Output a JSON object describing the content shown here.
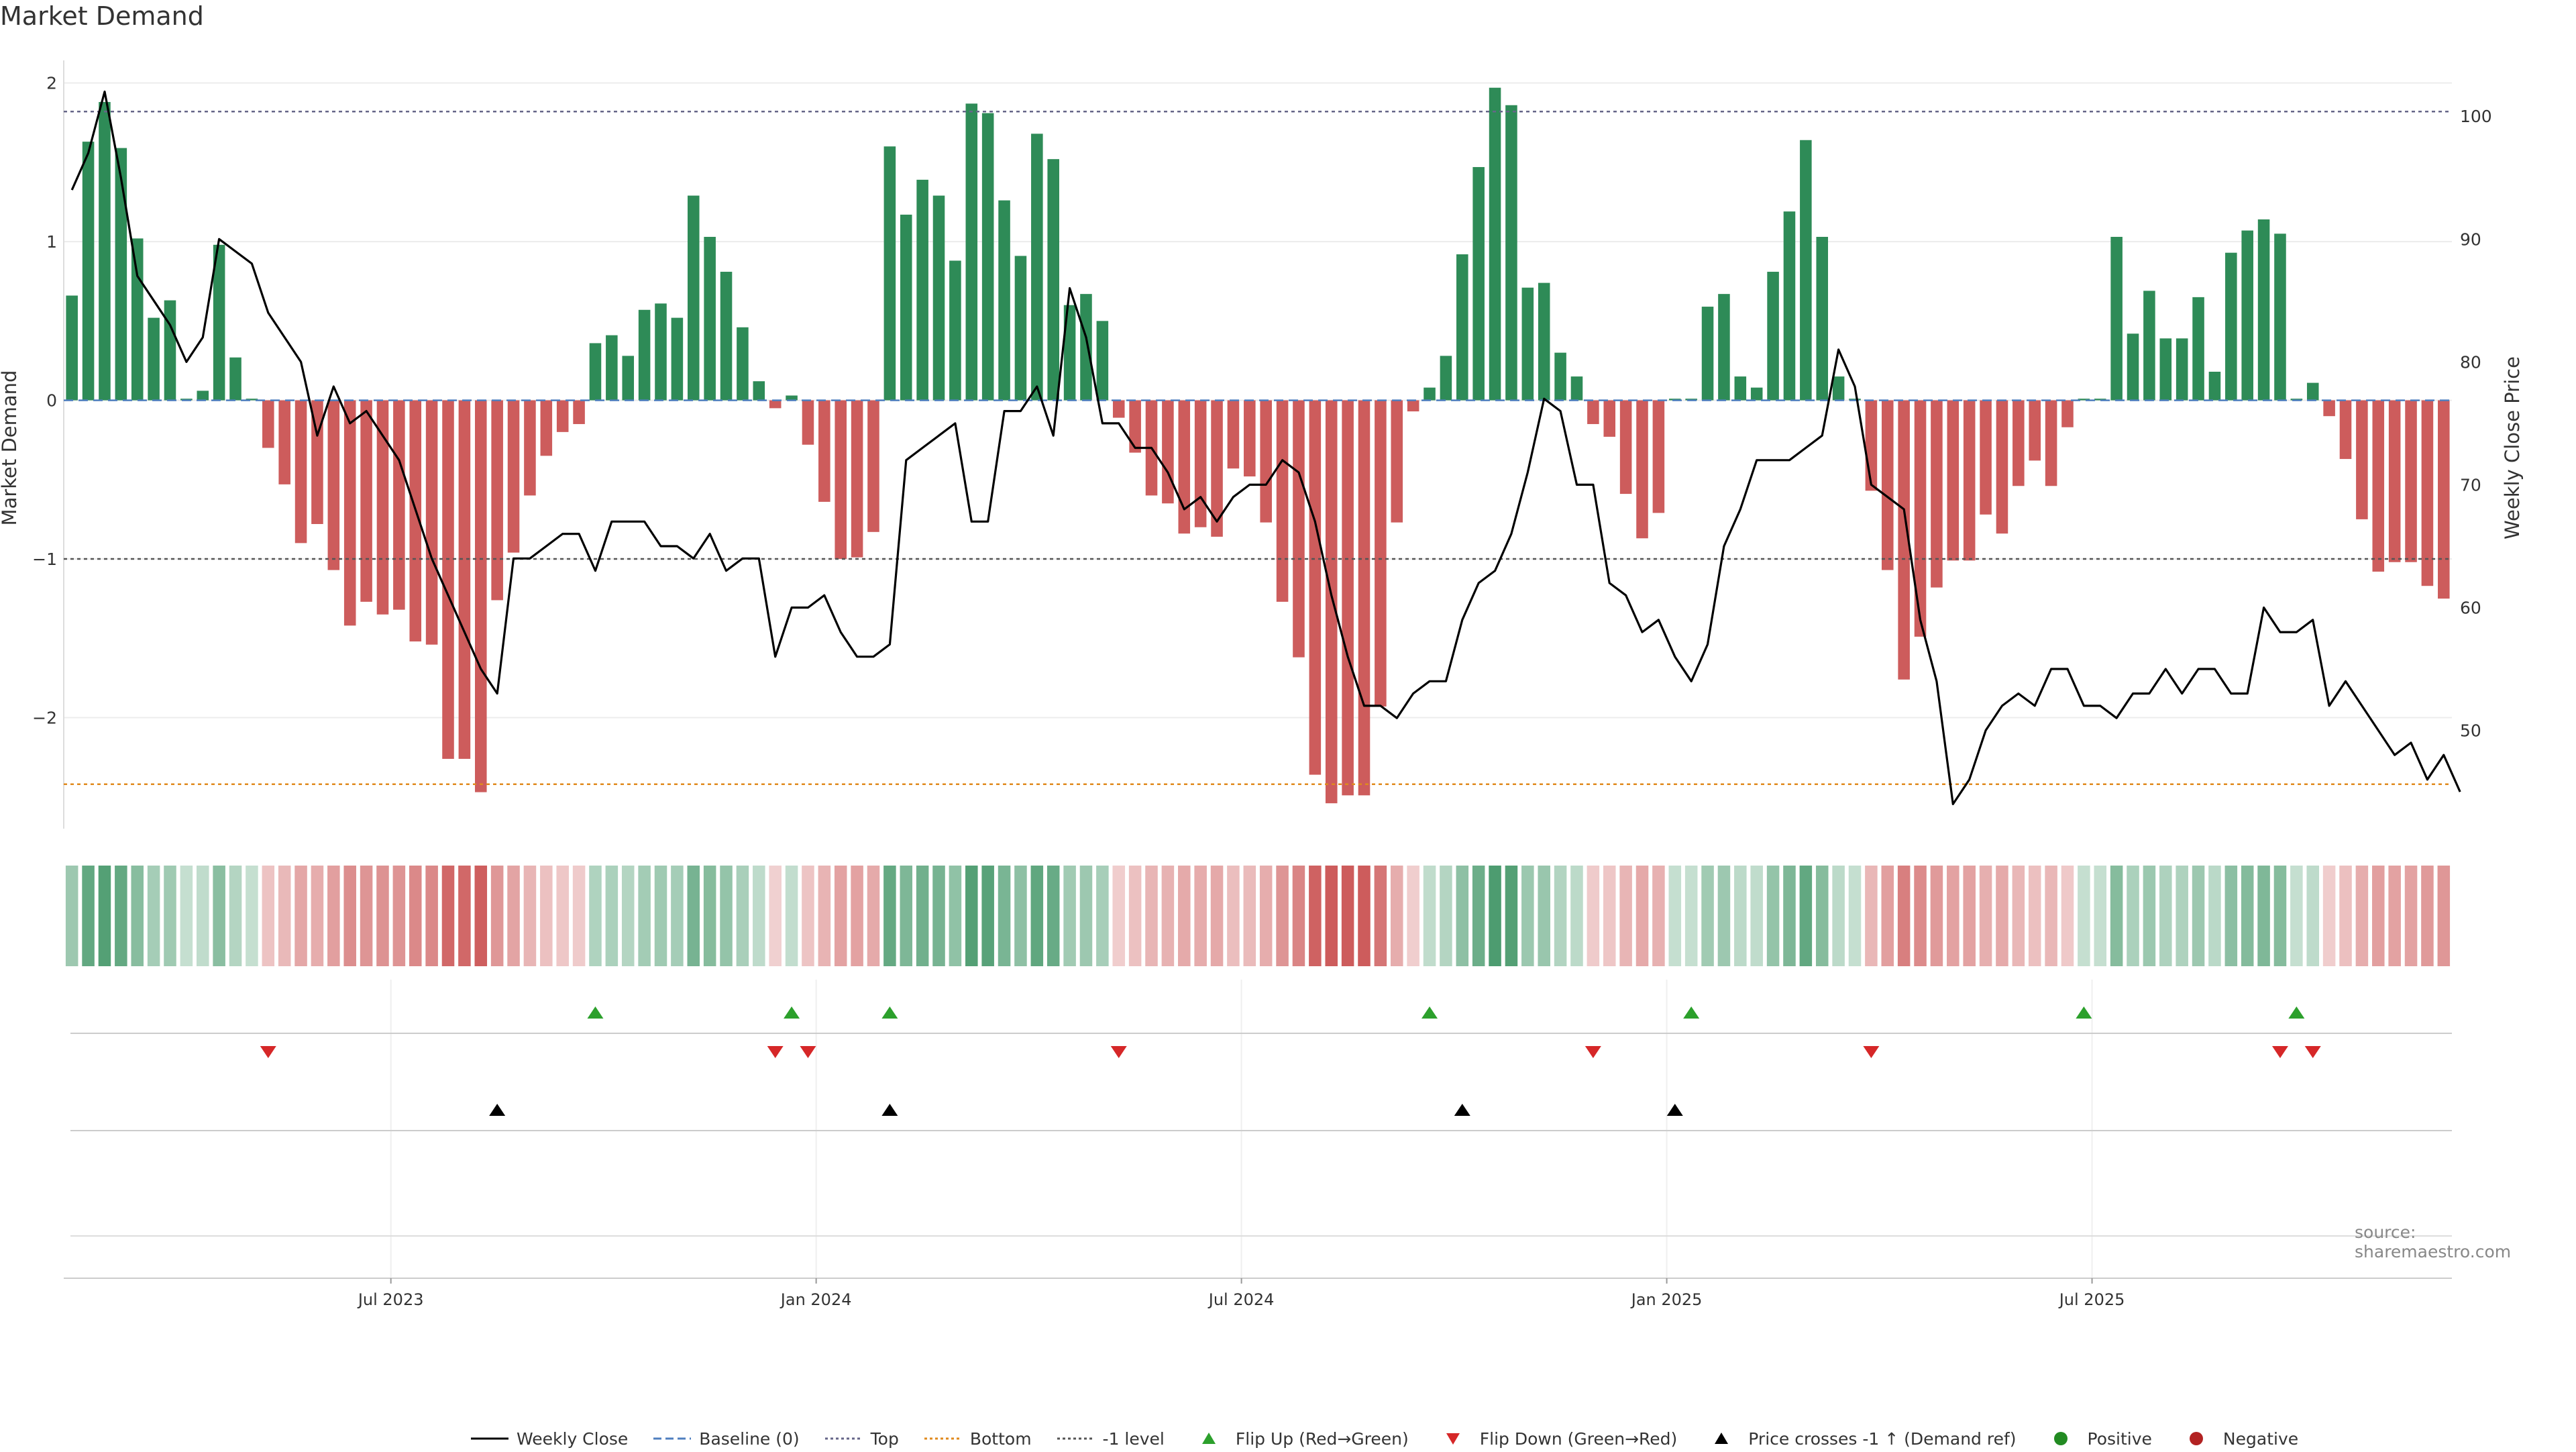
{
  "title": "Market Demand",
  "source": "source: sharemaestro.com",
  "colors": {
    "positive": "#2e8b57",
    "negative": "#cd5c5c",
    "price": "#000000",
    "top_line": "#666688",
    "bottom_line": "#e08a1e",
    "flip_up": "#2ca02c",
    "flip_down": "#d62728",
    "cross": "#000000",
    "pos_dot": "#228b22",
    "neg_dot": "#b22222"
  },
  "legend": [
    {
      "label": "Weekly Close",
      "symbol": "line-solid",
      "color": "#000000"
    },
    {
      "label": "Baseline (0)",
      "symbol": "line-dashed",
      "color": "#4f7fbf"
    },
    {
      "label": "Top",
      "symbol": "line-dotted",
      "color": "#666688"
    },
    {
      "label": "Bottom",
      "symbol": "line-dotted",
      "color": "#e08a1e"
    },
    {
      "label": "-1 level",
      "symbol": "line-dotted",
      "color": "#555555"
    },
    {
      "label": "Flip Up (Red→Green)",
      "symbol": "tri-up",
      "color": "#2ca02c"
    },
    {
      "label": "Flip Down (Green→Red)",
      "symbol": "tri-down",
      "color": "#d62728"
    },
    {
      "label": "Price crosses -1 ↑ (Demand ref)",
      "symbol": "tri-up",
      "color": "#000000"
    },
    {
      "label": "Positive",
      "symbol": "dot",
      "color": "#228b22"
    },
    {
      "label": "Negative",
      "symbol": "dot",
      "color": "#b22222"
    }
  ],
  "chart_data": {
    "type": "bar",
    "title": "Market Demand",
    "ylabel": "Market Demand",
    "y2label": "Weekly Close Price",
    "ylim": [
      -2.7,
      2.1
    ],
    "y2lim": [
      42,
      104
    ],
    "yticks": [
      2,
      1,
      0,
      -1,
      -2
    ],
    "ytick_labels": [
      "2",
      "1",
      "0",
      "−1",
      "−2"
    ],
    "y2ticks": [
      100,
      90,
      80,
      70,
      60,
      50
    ],
    "ytick_labels_right": [
      "100",
      "90",
      "80",
      "70",
      "60",
      "50"
    ],
    "reference_levels": {
      "top": 1.82,
      "bottom": -2.42,
      "minus_one": -1.0,
      "baseline": 0
    },
    "x_tick_labels": [
      "Jul 2023",
      "Jan 2024",
      "Jul 2024",
      "Jan 2025",
      "Jul 2025"
    ],
    "x_tick_weeks": [
      20,
      46,
      72,
      98,
      124
    ],
    "series": [
      {
        "name": "Market Demand",
        "values": [
          0.66,
          1.63,
          1.88,
          1.59,
          1.02,
          0.52,
          0.63,
          0.01,
          0.06,
          0.98,
          0.27,
          0.01,
          -0.3,
          -0.53,
          -0.9,
          -0.78,
          -1.07,
          -1.42,
          -1.27,
          -1.35,
          -1.32,
          -1.52,
          -1.54,
          -2.26,
          -2.26,
          -2.47,
          -1.26,
          -0.96,
          -0.6,
          -0.35,
          -0.2,
          -0.15,
          0.36,
          0.41,
          0.28,
          0.57,
          0.61,
          0.52,
          1.29,
          1.03,
          0.81,
          0.46,
          0.12,
          -0.05,
          0.03,
          -0.28,
          -0.64,
          -1.0,
          -0.99,
          -0.83,
          1.6,
          1.17,
          1.39,
          1.29,
          0.88,
          1.87,
          1.81,
          1.26,
          0.91,
          1.68,
          1.52,
          0.6,
          0.67,
          0.5,
          -0.11,
          -0.33,
          -0.6,
          -0.65,
          -0.84,
          -0.8,
          -0.86,
          -0.43,
          -0.48,
          -0.77,
          -1.27,
          -1.62,
          -2.36,
          -2.54,
          -2.49,
          -2.49,
          -1.93,
          -0.77,
          -0.07,
          0.08,
          0.28,
          0.92,
          1.47,
          1.97,
          1.86,
          0.71,
          0.74,
          0.3,
          0.15,
          -0.15,
          -0.23,
          -0.59,
          -0.87,
          -0.71,
          0.01,
          0.01,
          0.59,
          0.67,
          0.15,
          0.08,
          0.81,
          1.19,
          1.64,
          1.03,
          0.15,
          0.01,
          -0.57,
          -1.07,
          -1.76,
          -1.49,
          -1.18,
          -1.01,
          -1.01,
          -0.72,
          -0.84,
          -0.54,
          -0.38,
          -0.54,
          -0.17,
          0.01,
          0.01,
          1.03,
          0.42,
          0.69,
          0.39,
          0.39,
          0.65,
          0.18,
          0.93,
          1.07,
          1.14,
          1.05,
          0.01,
          0.11,
          -0.1,
          -0.37,
          -0.75,
          -1.08,
          -1.02,
          -1.02,
          -1.17,
          -1.25
        ]
      },
      {
        "name": "Weekly Close",
        "values": [
          94,
          97,
          102,
          95,
          87,
          85,
          83,
          80,
          82,
          90,
          89,
          88,
          84,
          82,
          80,
          74,
          78,
          75,
          76,
          74,
          72,
          68,
          64,
          61,
          58,
          55,
          53,
          64,
          64,
          65,
          66,
          66,
          63,
          67,
          67,
          67,
          65,
          65,
          64,
          66,
          63,
          64,
          64,
          56,
          60,
          60,
          61,
          58,
          56,
          56,
          57,
          72,
          73,
          74,
          75,
          67,
          67,
          76,
          76,
          78,
          74,
          86,
          82,
          75,
          75,
          73,
          73,
          71,
          68,
          69,
          67,
          69,
          70,
          70,
          72,
          71,
          67,
          61,
          56,
          52,
          52,
          51,
          53,
          54,
          54,
          59,
          62,
          63,
          66,
          71,
          77,
          76,
          70,
          70,
          62,
          61,
          58,
          59,
          56,
          54,
          57,
          65,
          68,
          72,
          72,
          72,
          73,
          74,
          81,
          78,
          70,
          69,
          68,
          59,
          54,
          44,
          46,
          50,
          52,
          53,
          52,
          55,
          55,
          52,
          52,
          51,
          53,
          53,
          55,
          53,
          55,
          55,
          53,
          53,
          60,
          58,
          58,
          59,
          52,
          54,
          52,
          50,
          48,
          49,
          46,
          48,
          45
        ]
      }
    ],
    "color_strip_values": [
      0.66,
      1.63,
      1.88,
      1.59,
      1.02,
      0.52,
      0.63,
      0.01,
      0.06,
      0.98,
      0.27,
      0.01,
      -0.3,
      -0.53,
      -0.9,
      -0.78,
      -1.07,
      -1.42,
      -1.27,
      -1.35,
      -1.32,
      -1.52,
      -1.54,
      -2.26,
      -2.26,
      -2.47,
      -1.26,
      -0.96,
      -0.6,
      -0.35,
      -0.2,
      -0.15,
      0.36,
      0.41,
      0.28,
      0.57,
      0.61,
      0.52,
      1.29,
      1.03,
      0.81,
      0.46,
      0.12,
      -0.05,
      0.03,
      -0.28,
      -0.64,
      -1.0,
      -0.99,
      -0.83,
      1.6,
      1.17,
      1.39,
      1.29,
      0.88,
      1.87,
      1.81,
      1.26,
      0.91,
      1.68,
      1.52,
      0.6,
      0.67,
      0.5,
      -0.11,
      -0.33,
      -0.6,
      -0.65,
      -0.84,
      -0.8,
      -0.86,
      -0.43,
      -0.48,
      -0.77,
      -1.27,
      -1.62,
      -2.36,
      -2.54,
      -2.49,
      -2.49,
      -1.93,
      -0.77,
      -0.07,
      0.08,
      0.28,
      0.92,
      1.47,
      1.97,
      1.86,
      0.71,
      0.74,
      0.3,
      0.15,
      -0.15,
      -0.23,
      -0.59,
      -0.87,
      -0.71,
      0.01,
      0.01,
      0.59,
      0.67,
      0.15,
      0.08,
      0.81,
      1.19,
      1.64,
      1.03,
      0.15,
      0.01,
      -0.57,
      -1.07,
      -1.76,
      -1.49,
      -1.18,
      -1.01,
      -1.01,
      -0.72,
      -0.84,
      -0.54,
      -0.38,
      -0.54,
      -0.17,
      0.01,
      0.01,
      1.03,
      0.42,
      0.69,
      0.39,
      0.39,
      0.65,
      0.18,
      0.93,
      1.07,
      1.14,
      1.05,
      0.01,
      0.11,
      -0.1,
      -0.37,
      -0.75,
      -1.08,
      -1.02,
      -1.02,
      -1.17,
      -1.25
    ],
    "flip_up_weeks": [
      32,
      44,
      50,
      83,
      99,
      123,
      136
    ],
    "flip_down_weeks": [
      12,
      43,
      45,
      64,
      93,
      110,
      135,
      137
    ],
    "price_cross_weeks": [
      26,
      50,
      85,
      98
    ]
  }
}
